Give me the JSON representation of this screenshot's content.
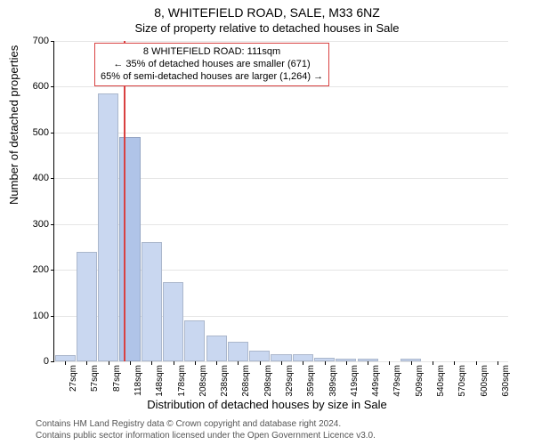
{
  "chart": {
    "type": "histogram",
    "title_main": "8, WHITEFIELD ROAD, SALE, M33 6NZ",
    "title_sub": "Size of property relative to detached houses in Sale",
    "y_axis_label": "Number of detached properties",
    "x_axis_label": "Distribution of detached houses by size in Sale",
    "title_fontsize": 14,
    "subtitle_fontsize": 13,
    "axis_label_fontsize": 13,
    "tick_fontsize": 11,
    "background_color": "#ffffff",
    "grid_color": "#e5e5e5",
    "axis_color": "#000000",
    "bar_color": "#c9d7f0",
    "bar_color_highlight": "#b0c4e8",
    "marker_color": "#d94141",
    "annotation_border_color": "#d94141",
    "y": {
      "min": 0,
      "max": 700,
      "ticks": [
        0,
        100,
        200,
        300,
        400,
        500,
        600,
        700
      ]
    },
    "x": {
      "categories": [
        "27sqm",
        "57sqm",
        "87sqm",
        "118sqm",
        "148sqm",
        "178sqm",
        "208sqm",
        "238sqm",
        "268sqm",
        "298sqm",
        "329sqm",
        "359sqm",
        "389sqm",
        "419sqm",
        "449sqm",
        "479sqm",
        "509sqm",
        "540sqm",
        "570sqm",
        "600sqm",
        "630sqm"
      ],
      "values": [
        13,
        240,
        586,
        491,
        260,
        174,
        89,
        56,
        42,
        24,
        16,
        15,
        8,
        6,
        5,
        0,
        5,
        0,
        0,
        0,
        0
      ],
      "highlight_index": 3
    },
    "marker": {
      "category_index": 3,
      "fractional_offset": -0.3
    },
    "annotation": {
      "lines": [
        "8 WHITEFIELD ROAD: 111sqm",
        "← 35% of detached houses are smaller (671)",
        "65% of semi-detached houses are larger (1,264) →"
      ]
    },
    "footnotes": [
      "Contains HM Land Registry data © Crown copyright and database right 2024.",
      "Contains public sector information licensed under the Open Government Licence v3.0."
    ]
  }
}
